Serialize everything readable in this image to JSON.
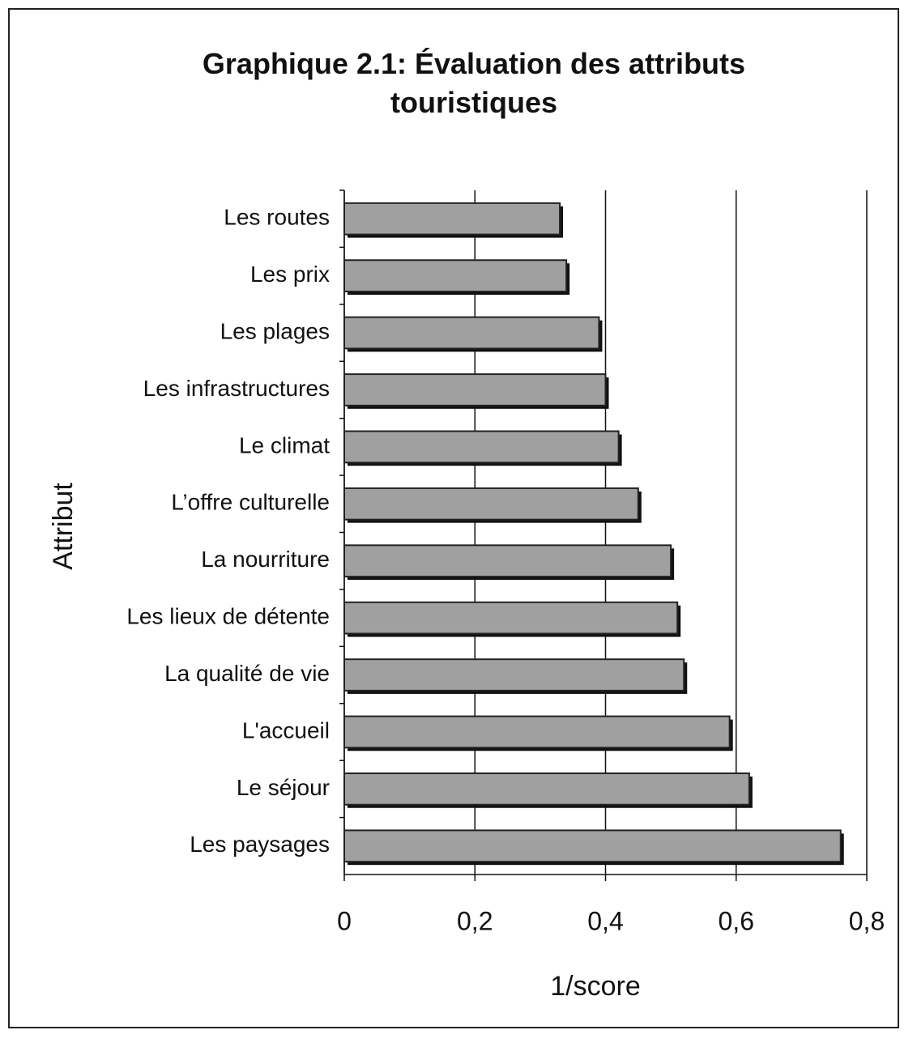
{
  "chart_data": {
    "type": "barh",
    "title": "Graphique 2.1: Évaluation des attributs touristiques",
    "xlabel": "1/score",
    "ylabel": "Attribut",
    "categories": [
      "Les routes",
      "Les prix",
      "Les plages",
      "Les infrastructures",
      "Le climat",
      "L’offre culturelle",
      "La nourriture",
      "Les lieux de détente",
      "La qualité de vie",
      "L'accueil",
      "Le séjour",
      "Les paysages"
    ],
    "values": [
      0.33,
      0.34,
      0.39,
      0.4,
      0.42,
      0.45,
      0.5,
      0.51,
      0.52,
      0.59,
      0.62,
      0.76
    ],
    "color": "#a0a0a0",
    "xlim": [
      0,
      0.8
    ],
    "xticks": [
      0,
      {
        "value": 0.2,
        "label": "0,2"
      },
      {
        "value": 0.4,
        "label": "0,4"
      },
      {
        "value": 0.6,
        "label": "0,6"
      },
      {
        "value": 0.8,
        "label": "0,8"
      }
    ],
    "grid": true
  }
}
